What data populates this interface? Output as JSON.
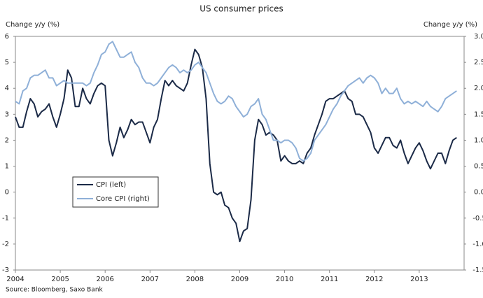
{
  "chart_data": {
    "type": "line",
    "title": "US consumer prices",
    "y_label": "Change y/y (%)",
    "y2_label": "Change y/y (%)",
    "source": "Source: Bloomberg, Saxo Bank",
    "categories": [
      "2004",
      null,
      null,
      null,
      null,
      null,
      null,
      null,
      null,
      null,
      null,
      null,
      "2005",
      null,
      null,
      null,
      null,
      null,
      null,
      null,
      null,
      null,
      null,
      null,
      "2006",
      null,
      null,
      null,
      null,
      null,
      null,
      null,
      null,
      null,
      null,
      null,
      "2007",
      null,
      null,
      null,
      null,
      null,
      null,
      null,
      null,
      null,
      null,
      null,
      "2008",
      null,
      null,
      null,
      null,
      null,
      null,
      null,
      null,
      null,
      null,
      null,
      "2009",
      null,
      null,
      null,
      null,
      null,
      null,
      null,
      null,
      null,
      null,
      null,
      "2010",
      null,
      null,
      null,
      null,
      null,
      null,
      null,
      null,
      null,
      null,
      null,
      "2011",
      null,
      null,
      null,
      null,
      null,
      null,
      null,
      null,
      null,
      null,
      null,
      "2012",
      null,
      null,
      null,
      null,
      null,
      null,
      null,
      null,
      null,
      null,
      null,
      "2013",
      null,
      null,
      null,
      null,
      null,
      null,
      null,
      null,
      null,
      null
    ],
    "series": [
      {
        "name": "CPI (left)",
        "color": "#1b2a47",
        "axis": "y",
        "values": [
          2.9,
          2.5,
          2.5,
          3.1,
          3.6,
          3.4,
          2.9,
          3.1,
          3.2,
          3.4,
          2.9,
          2.5,
          3.0,
          3.6,
          4.7,
          4.4,
          3.3,
          3.3,
          4.0,
          3.6,
          3.4,
          3.8,
          4.1,
          4.2,
          4.1,
          2.0,
          1.4,
          1.9,
          2.5,
          2.1,
          2.4,
          2.8,
          2.6,
          2.7,
          2.7,
          2.3,
          1.9,
          2.5,
          2.8,
          3.6,
          4.3,
          4.1,
          4.3,
          4.1,
          4.0,
          3.9,
          4.2,
          4.9,
          5.5,
          5.3,
          4.8,
          3.6,
          1.1,
          0.0,
          -0.1,
          0.0,
          -0.5,
          -0.6,
          -1.0,
          -1.2,
          -1.9,
          -1.5,
          -1.4,
          -0.3,
          2.0,
          2.8,
          2.6,
          2.2,
          2.3,
          2.2,
          2.0,
          1.2,
          1.4,
          1.2,
          1.1,
          1.1,
          1.2,
          1.1,
          1.5,
          1.7,
          2.2,
          2.6,
          3.0,
          3.5,
          3.6,
          3.6,
          3.7,
          3.8,
          3.9,
          3.6,
          3.5,
          3.0,
          3.0,
          2.9,
          2.6,
          2.3,
          1.7,
          1.5,
          1.8,
          2.1,
          2.1,
          1.8,
          1.7,
          2.0,
          1.5,
          1.1,
          1.4,
          1.7,
          1.9,
          1.6,
          1.2,
          0.9,
          1.2,
          1.5,
          1.5,
          1.1,
          1.6,
          2.0,
          2.1
        ]
      },
      {
        "name": "Core CPI (right)",
        "color": "#8fb0d8",
        "axis": "y2",
        "values": [
          1.75,
          1.7,
          1.95,
          2.0,
          2.2,
          2.25,
          2.25,
          2.3,
          2.35,
          2.2,
          2.2,
          2.05,
          2.1,
          2.15,
          2.1,
          2.1,
          2.1,
          2.1,
          2.1,
          2.05,
          2.1,
          2.3,
          2.45,
          2.65,
          2.7,
          2.85,
          2.9,
          2.75,
          2.6,
          2.6,
          2.65,
          2.7,
          2.5,
          2.4,
          2.2,
          2.1,
          2.1,
          2.05,
          2.1,
          2.2,
          2.3,
          2.4,
          2.45,
          2.4,
          2.3,
          2.35,
          2.3,
          2.35,
          2.45,
          2.5,
          2.4,
          2.3,
          2.1,
          1.9,
          1.75,
          1.7,
          1.75,
          1.85,
          1.8,
          1.65,
          1.55,
          1.45,
          1.5,
          1.65,
          1.7,
          1.8,
          1.5,
          1.4,
          1.2,
          1.0,
          1.0,
          0.95,
          1.0,
          1.0,
          0.95,
          0.85,
          0.65,
          0.6,
          0.65,
          0.75,
          1.0,
          1.1,
          1.2,
          1.3,
          1.45,
          1.6,
          1.7,
          1.85,
          1.95,
          2.05,
          2.1,
          2.15,
          2.2,
          2.1,
          2.2,
          2.25,
          2.2,
          2.1,
          1.9,
          2.0,
          1.9,
          1.9,
          2.0,
          1.8,
          1.7,
          1.75,
          1.7,
          1.75,
          1.7,
          1.65,
          1.75,
          1.65,
          1.6,
          1.55,
          1.65,
          1.8,
          1.85,
          1.9,
          1.95
        ]
      }
    ],
    "ylim": [
      -3,
      6
    ],
    "yticks": [
      -3,
      -2,
      -1,
      0,
      1,
      2,
      3,
      4,
      5,
      6
    ],
    "y2lim": [
      -1.5,
      3
    ],
    "y2ticks": [
      -1.5,
      {
        "value": -1,
        "label": "-1.0"
      },
      -0.5,
      {
        "value": 0,
        "label": "0.0"
      },
      0.5,
      {
        "value": 1,
        "label": "1.0"
      },
      1.5,
      {
        "value": 2,
        "label": "2.0"
      },
      2.5,
      {
        "value": 3,
        "label": "3.0"
      }
    ],
    "grid": false,
    "legend": "lower left"
  }
}
